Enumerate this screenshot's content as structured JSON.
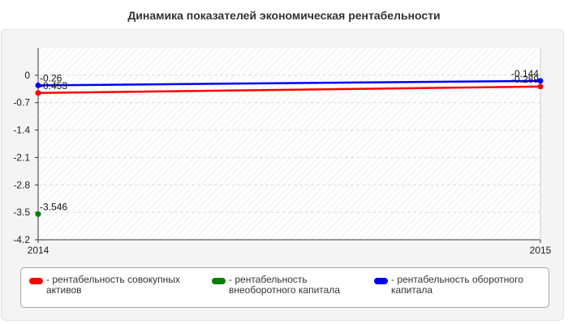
{
  "chart_data": {
    "type": "line",
    "title": "Динамика показателей экономическая рентабельности",
    "xlabel": "",
    "ylabel": "",
    "x": [
      "2014",
      "2015"
    ],
    "ylim": [
      -4.2,
      0.7
    ],
    "yticks": [
      0,
      -0.7,
      -1.4,
      -2.1,
      -2.8,
      -3.5,
      -4.2
    ],
    "ytick_labels": [
      "0",
      "-0.7",
      "-1.4",
      "-2.1",
      "-2.8",
      "-3.5",
      "-4.2"
    ],
    "xtick_labels": [
      "2014",
      "2015"
    ],
    "grid": true,
    "legend_position": "bottom",
    "series": [
      {
        "name": "рентабельность совокупных активов",
        "color": "#ff0000",
        "values": [
          -0.453,
          -0.289
        ],
        "labels": [
          "-0.453",
          "-0.289"
        ]
      },
      {
        "name": "рентабельность внеоборотного капитала",
        "color": "#008000",
        "values": [
          -3.546,
          null
        ],
        "labels": [
          "-3.546",
          ""
        ]
      },
      {
        "name": "рентабельность оборотного капитала",
        "color": "#0000ff",
        "values": [
          -0.26,
          -0.144
        ],
        "labels": [
          "-0.26",
          "-0.144"
        ]
      }
    ]
  },
  "legend": {
    "items": [
      {
        "label": "рентабельность совокупных активов",
        "color": "#ff0000"
      },
      {
        "label": "рентабельность внеоборотного капитала",
        "color": "#008000"
      },
      {
        "label": "рентабельность оборотного капитала",
        "color": "#0000ff"
      }
    ]
  }
}
